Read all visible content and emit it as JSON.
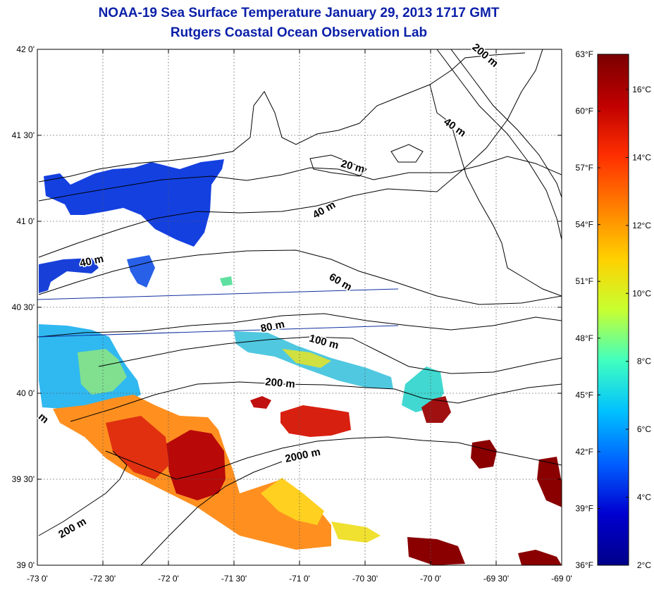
{
  "title": "NOAA-19 Sea Surface Temperature January 29, 2013 1717 GMT",
  "subtitle": "Rutgers Coastal Ocean Observation Lab",
  "map": {
    "lon_range": [
      -73,
      -69
    ],
    "lat_range": [
      39,
      42
    ],
    "lon_ticks": [
      {
        "value": -73,
        "label": "-73 0'"
      },
      {
        "value": -72.5,
        "label": "-72 30'"
      },
      {
        "value": -72,
        "label": "-72 0'"
      },
      {
        "value": -71.5,
        "label": "-71 30'"
      },
      {
        "value": -71,
        "label": "-71 0'"
      },
      {
        "value": -70.5,
        "label": "-70 30'"
      },
      {
        "value": -70,
        "label": "-70 0'"
      },
      {
        "value": -69.5,
        "label": "-69 30'"
      },
      {
        "value": -69,
        "label": "-69 0'"
      }
    ],
    "lat_ticks": [
      {
        "value": 42,
        "label": "42 0'"
      },
      {
        "value": 41.5,
        "label": "41 30'"
      },
      {
        "value": 41,
        "label": "41 0'"
      },
      {
        "value": 40.5,
        "label": "40 30'"
      },
      {
        "value": 40,
        "label": "40 0'"
      },
      {
        "value": 39.5,
        "label": "39 30'"
      },
      {
        "value": 39,
        "label": "39 0'"
      }
    ],
    "grid": "dotted"
  },
  "contour_labels": [
    {
      "text": "200 m",
      "lon": -69.6,
      "lat": 41.95,
      "rotate": 40
    },
    {
      "text": "40 m",
      "lon": -69.83,
      "lat": 41.53,
      "rotate": 35
    },
    {
      "text": "20 m",
      "lon": -70.6,
      "lat": 41.3,
      "rotate": 15
    },
    {
      "text": "40 m",
      "lon": -70.8,
      "lat": 41.05,
      "rotate": -30
    },
    {
      "text": "40 m",
      "lon": -72.58,
      "lat": 40.75,
      "rotate": -12
    },
    {
      "text": "60 m",
      "lon": -70.7,
      "lat": 40.63,
      "rotate": 30
    },
    {
      "text": "80 m",
      "lon": -71.2,
      "lat": 40.37,
      "rotate": -12
    },
    {
      "text": "100 m",
      "lon": -70.82,
      "lat": 40.28,
      "rotate": 15
    },
    {
      "text": "200 m",
      "lon": -71.15,
      "lat": 40.04,
      "rotate": 5
    },
    {
      "text": "2000 m",
      "lon": -70.97,
      "lat": 39.62,
      "rotate": -12
    },
    {
      "text": "200 m",
      "lon": -72.72,
      "lat": 39.2,
      "rotate": -30
    },
    {
      "text": "m",
      "lon": -72.97,
      "lat": 39.84,
      "rotate": 40
    }
  ],
  "colorbar": {
    "celsius_labels": [
      "16°C",
      "14°C",
      "12°C",
      "10°C",
      "8°C",
      "6°C",
      "4°C",
      "2°C"
    ],
    "fahrenheit_labels": [
      "63°F",
      "60°F",
      "57°F",
      "54°F",
      "51°F",
      "48°F",
      "45°F",
      "42°F",
      "39°F",
      "36°F"
    ],
    "colors": [
      "#7a0000",
      "#c00000",
      "#ff3000",
      "#ff8000",
      "#ffd000",
      "#c8ff30",
      "#40ffc0",
      "#00c0ff",
      "#0060ff",
      "#0000d0",
      "#00008a"
    ]
  }
}
